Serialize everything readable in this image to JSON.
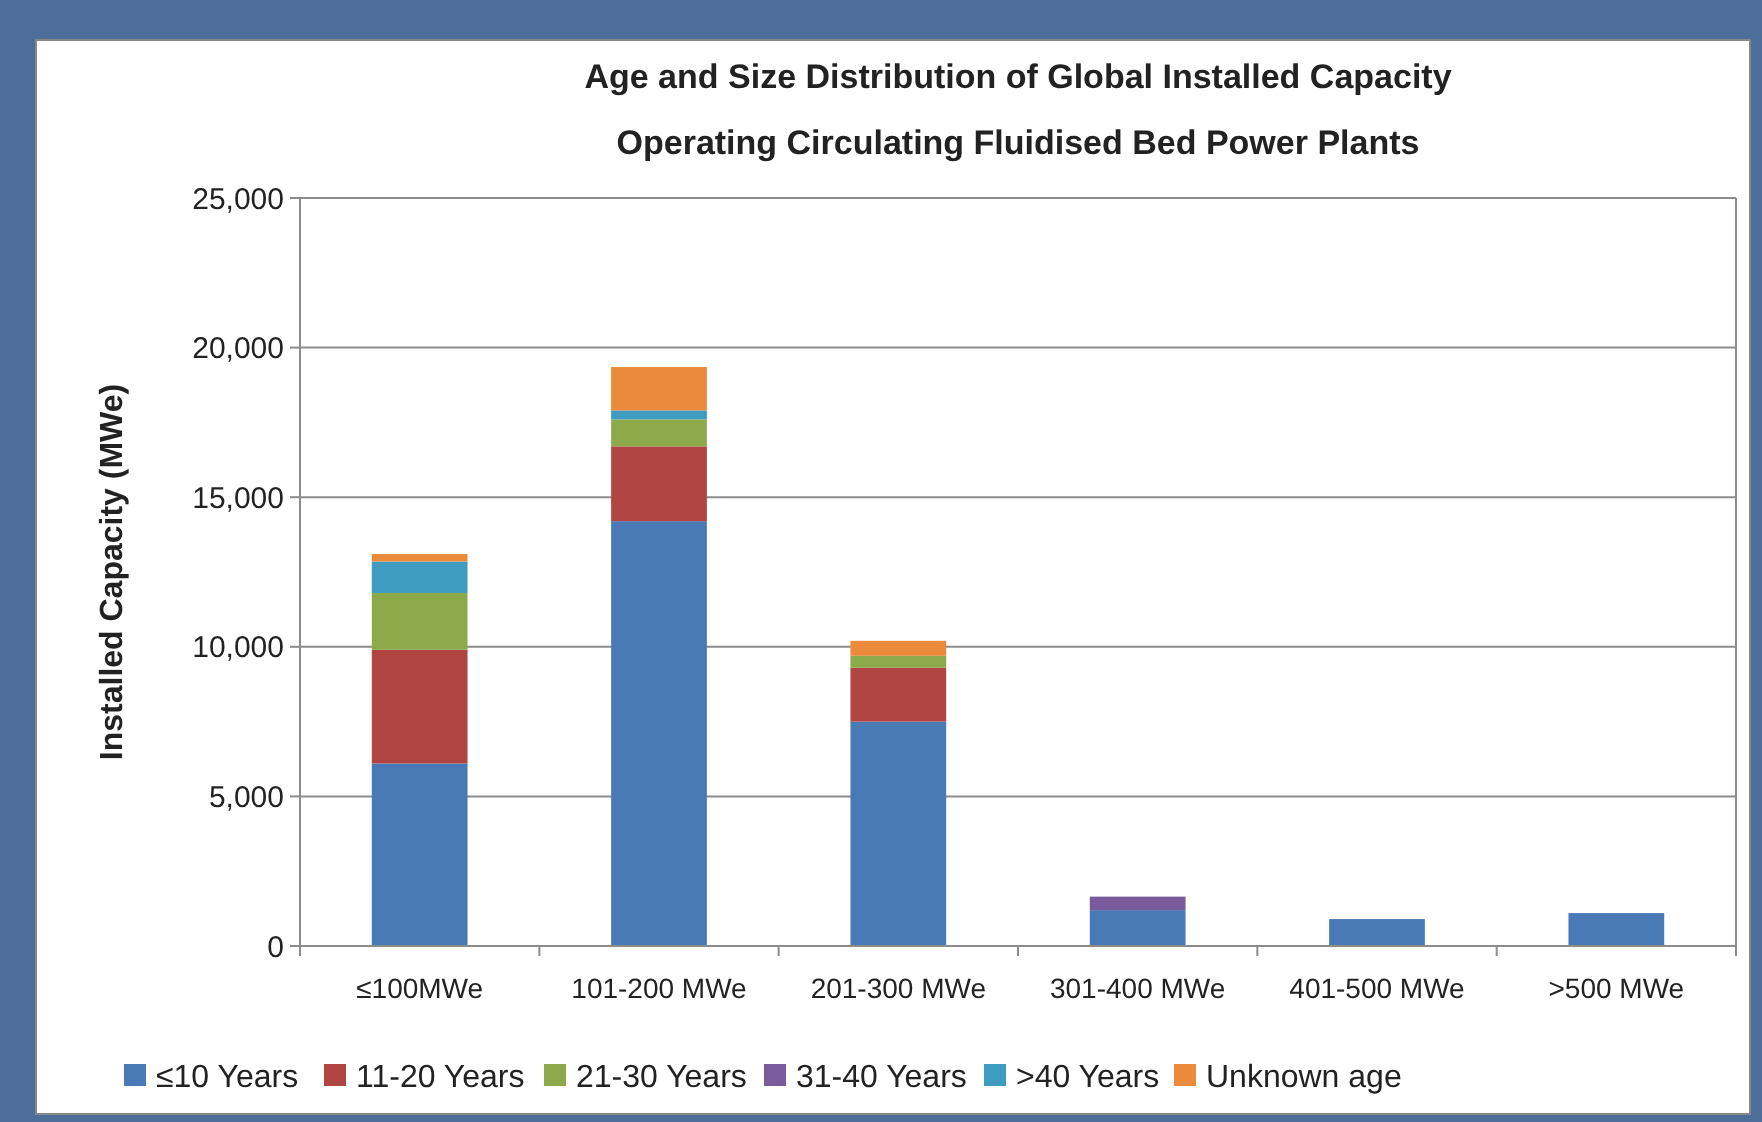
{
  "chart_data": {
    "type": "bar",
    "stacked": true,
    "title": "Age and Size Distribution of Global Installed Capacity",
    "subtitle": "Operating Circulating Fluidised Bed Power Plants",
    "ylabel": "Installed Capacity (MWe)",
    "categories": [
      "≤100MWe",
      "101-200 MWe",
      "201-300 MWe",
      "301-400 MWe",
      "401-500 MWe",
      ">500 MWe"
    ],
    "series": [
      {
        "name": "≤10 Years",
        "color": "#4a7ab5",
        "values": [
          6100,
          14200,
          7500,
          1200,
          900,
          1100
        ]
      },
      {
        "name": "11-20 Years",
        "color": "#b04542",
        "values": [
          3800,
          2500,
          1800,
          0,
          0,
          0
        ]
      },
      {
        "name": "21-30 Years",
        "color": "#8caa4a",
        "values": [
          1900,
          900,
          400,
          0,
          0,
          0
        ]
      },
      {
        "name": "31-40 Years",
        "color": "#7a5b9c",
        "values": [
          0,
          0,
          0,
          450,
          0,
          0
        ]
      },
      {
        "name": ">40 Years",
        "color": "#3d9cc0",
        "values": [
          1050,
          300,
          0,
          0,
          0,
          0
        ]
      },
      {
        "name": "Unknown age",
        "color": "#ea8a3a",
        "values": [
          250,
          1450,
          500,
          0,
          0,
          0
        ]
      }
    ],
    "ylim": [
      0,
      25000
    ],
    "yticks": [
      {
        "value": 0,
        "label": "0"
      },
      {
        "value": 5000,
        "label": "5,000"
      },
      {
        "value": 10000,
        "label": "10,000"
      },
      {
        "value": 15000,
        "label": "15,000"
      },
      {
        "value": 20000,
        "label": "20,000"
      },
      {
        "value": 25000,
        "label": "25,000"
      }
    ],
    "grid": "y",
    "legend": "bottom"
  }
}
